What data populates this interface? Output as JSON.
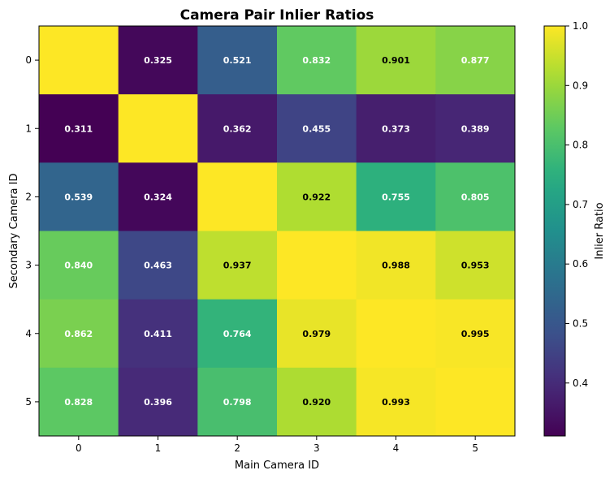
{
  "chart_data": {
    "type": "heatmap",
    "title": "Camera Pair Inlier Ratios",
    "xlabel": "Main Camera ID",
    "ylabel": "Secondary Camera ID",
    "x_categories": [
      "0",
      "1",
      "2",
      "3",
      "4",
      "5"
    ],
    "y_categories": [
      "0",
      "1",
      "2",
      "3",
      "4",
      "5"
    ],
    "values": [
      [
        1.0,
        0.325,
        0.521,
        0.832,
        0.901,
        0.877
      ],
      [
        0.311,
        1.0,
        0.362,
        0.455,
        0.373,
        0.389
      ],
      [
        0.539,
        0.324,
        1.0,
        0.922,
        0.755,
        0.805
      ],
      [
        0.84,
        0.463,
        0.937,
        1.0,
        0.988,
        0.953
      ],
      [
        0.862,
        0.411,
        0.764,
        0.979,
        1.0,
        0.995
      ],
      [
        0.828,
        0.396,
        0.798,
        0.92,
        0.993,
        1.0
      ]
    ],
    "cell_labels": [
      [
        "",
        "0.325",
        "0.521",
        "0.832",
        "0.901",
        "0.877"
      ],
      [
        "0.311",
        "",
        "0.362",
        "0.455",
        "0.373",
        "0.389"
      ],
      [
        "0.539",
        "0.324",
        "",
        "0.922",
        "0.755",
        "0.805"
      ],
      [
        "0.840",
        "0.463",
        "0.937",
        "",
        "0.988",
        "0.953"
      ],
      [
        "0.862",
        "0.411",
        "0.764",
        "0.979",
        "",
        "0.995"
      ],
      [
        "0.828",
        "0.396",
        "0.798",
        "0.920",
        "0.993",
        ""
      ]
    ],
    "colormap": "viridis",
    "value_range": [
      0.311,
      1.0
    ],
    "colorbar": {
      "label": "Inlier Ratio",
      "ticks": [
        "0.4",
        "0.5",
        "0.6",
        "0.7",
        "0.8",
        "0.9",
        "1.0"
      ]
    },
    "label_color_threshold": 0.9
  }
}
